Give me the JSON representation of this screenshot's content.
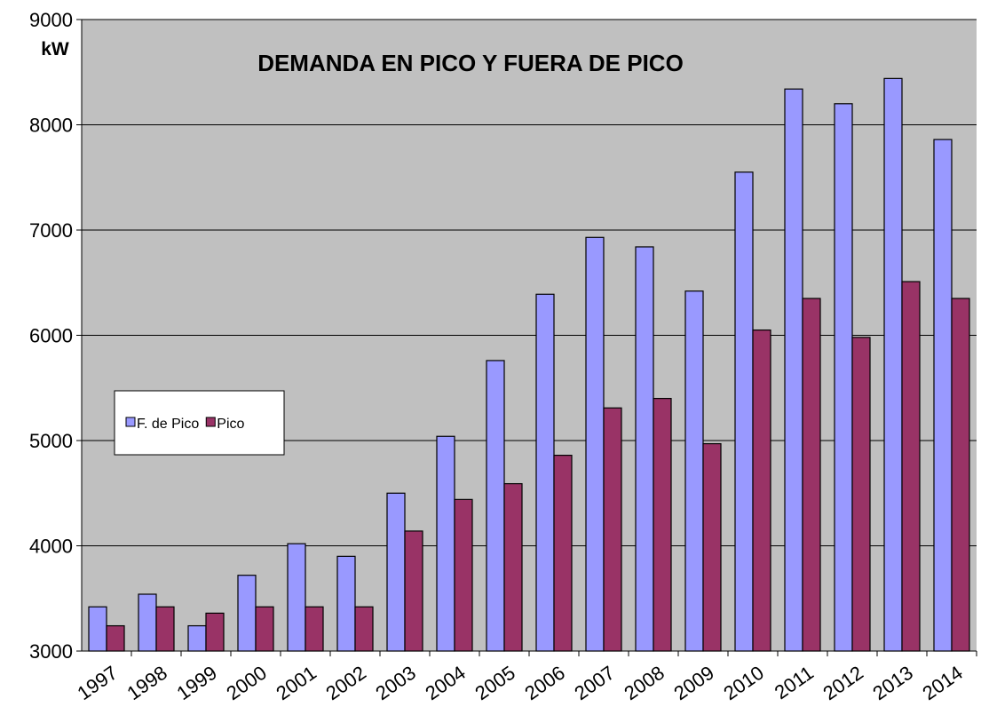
{
  "chart_data": {
    "type": "bar",
    "title": "DEMANDA EN PICO Y FUERA DE PICO",
    "y_label": "kW",
    "categories": [
      "1997",
      "1998",
      "1999",
      "2000",
      "2001",
      "2002",
      "2003",
      "2004",
      "2005",
      "2006",
      "2007",
      "2008",
      "2009",
      "2010",
      "2011",
      "2012",
      "2013",
      "2014"
    ],
    "series": [
      {
        "name": "F. de Pico",
        "color": "#9999ff",
        "values": [
          3420,
          3540,
          3240,
          3720,
          4020,
          3900,
          4500,
          5040,
          5760,
          6390,
          6930,
          6840,
          6420,
          7550,
          8340,
          8200,
          8440,
          7860
        ]
      },
      {
        "name": "Pico",
        "color": "#993366",
        "values": [
          3240,
          3420,
          3360,
          3420,
          3420,
          3420,
          4140,
          4440,
          4590,
          4860,
          5310,
          5400,
          4970,
          6050,
          6350,
          5980,
          6510,
          6350
        ]
      }
    ],
    "ylim": [
      3000,
      9000
    ],
    "yticks": [
      3000,
      4000,
      5000,
      6000,
      7000,
      8000,
      9000
    ],
    "grid": true,
    "plot_background": "#c0c0c0"
  }
}
